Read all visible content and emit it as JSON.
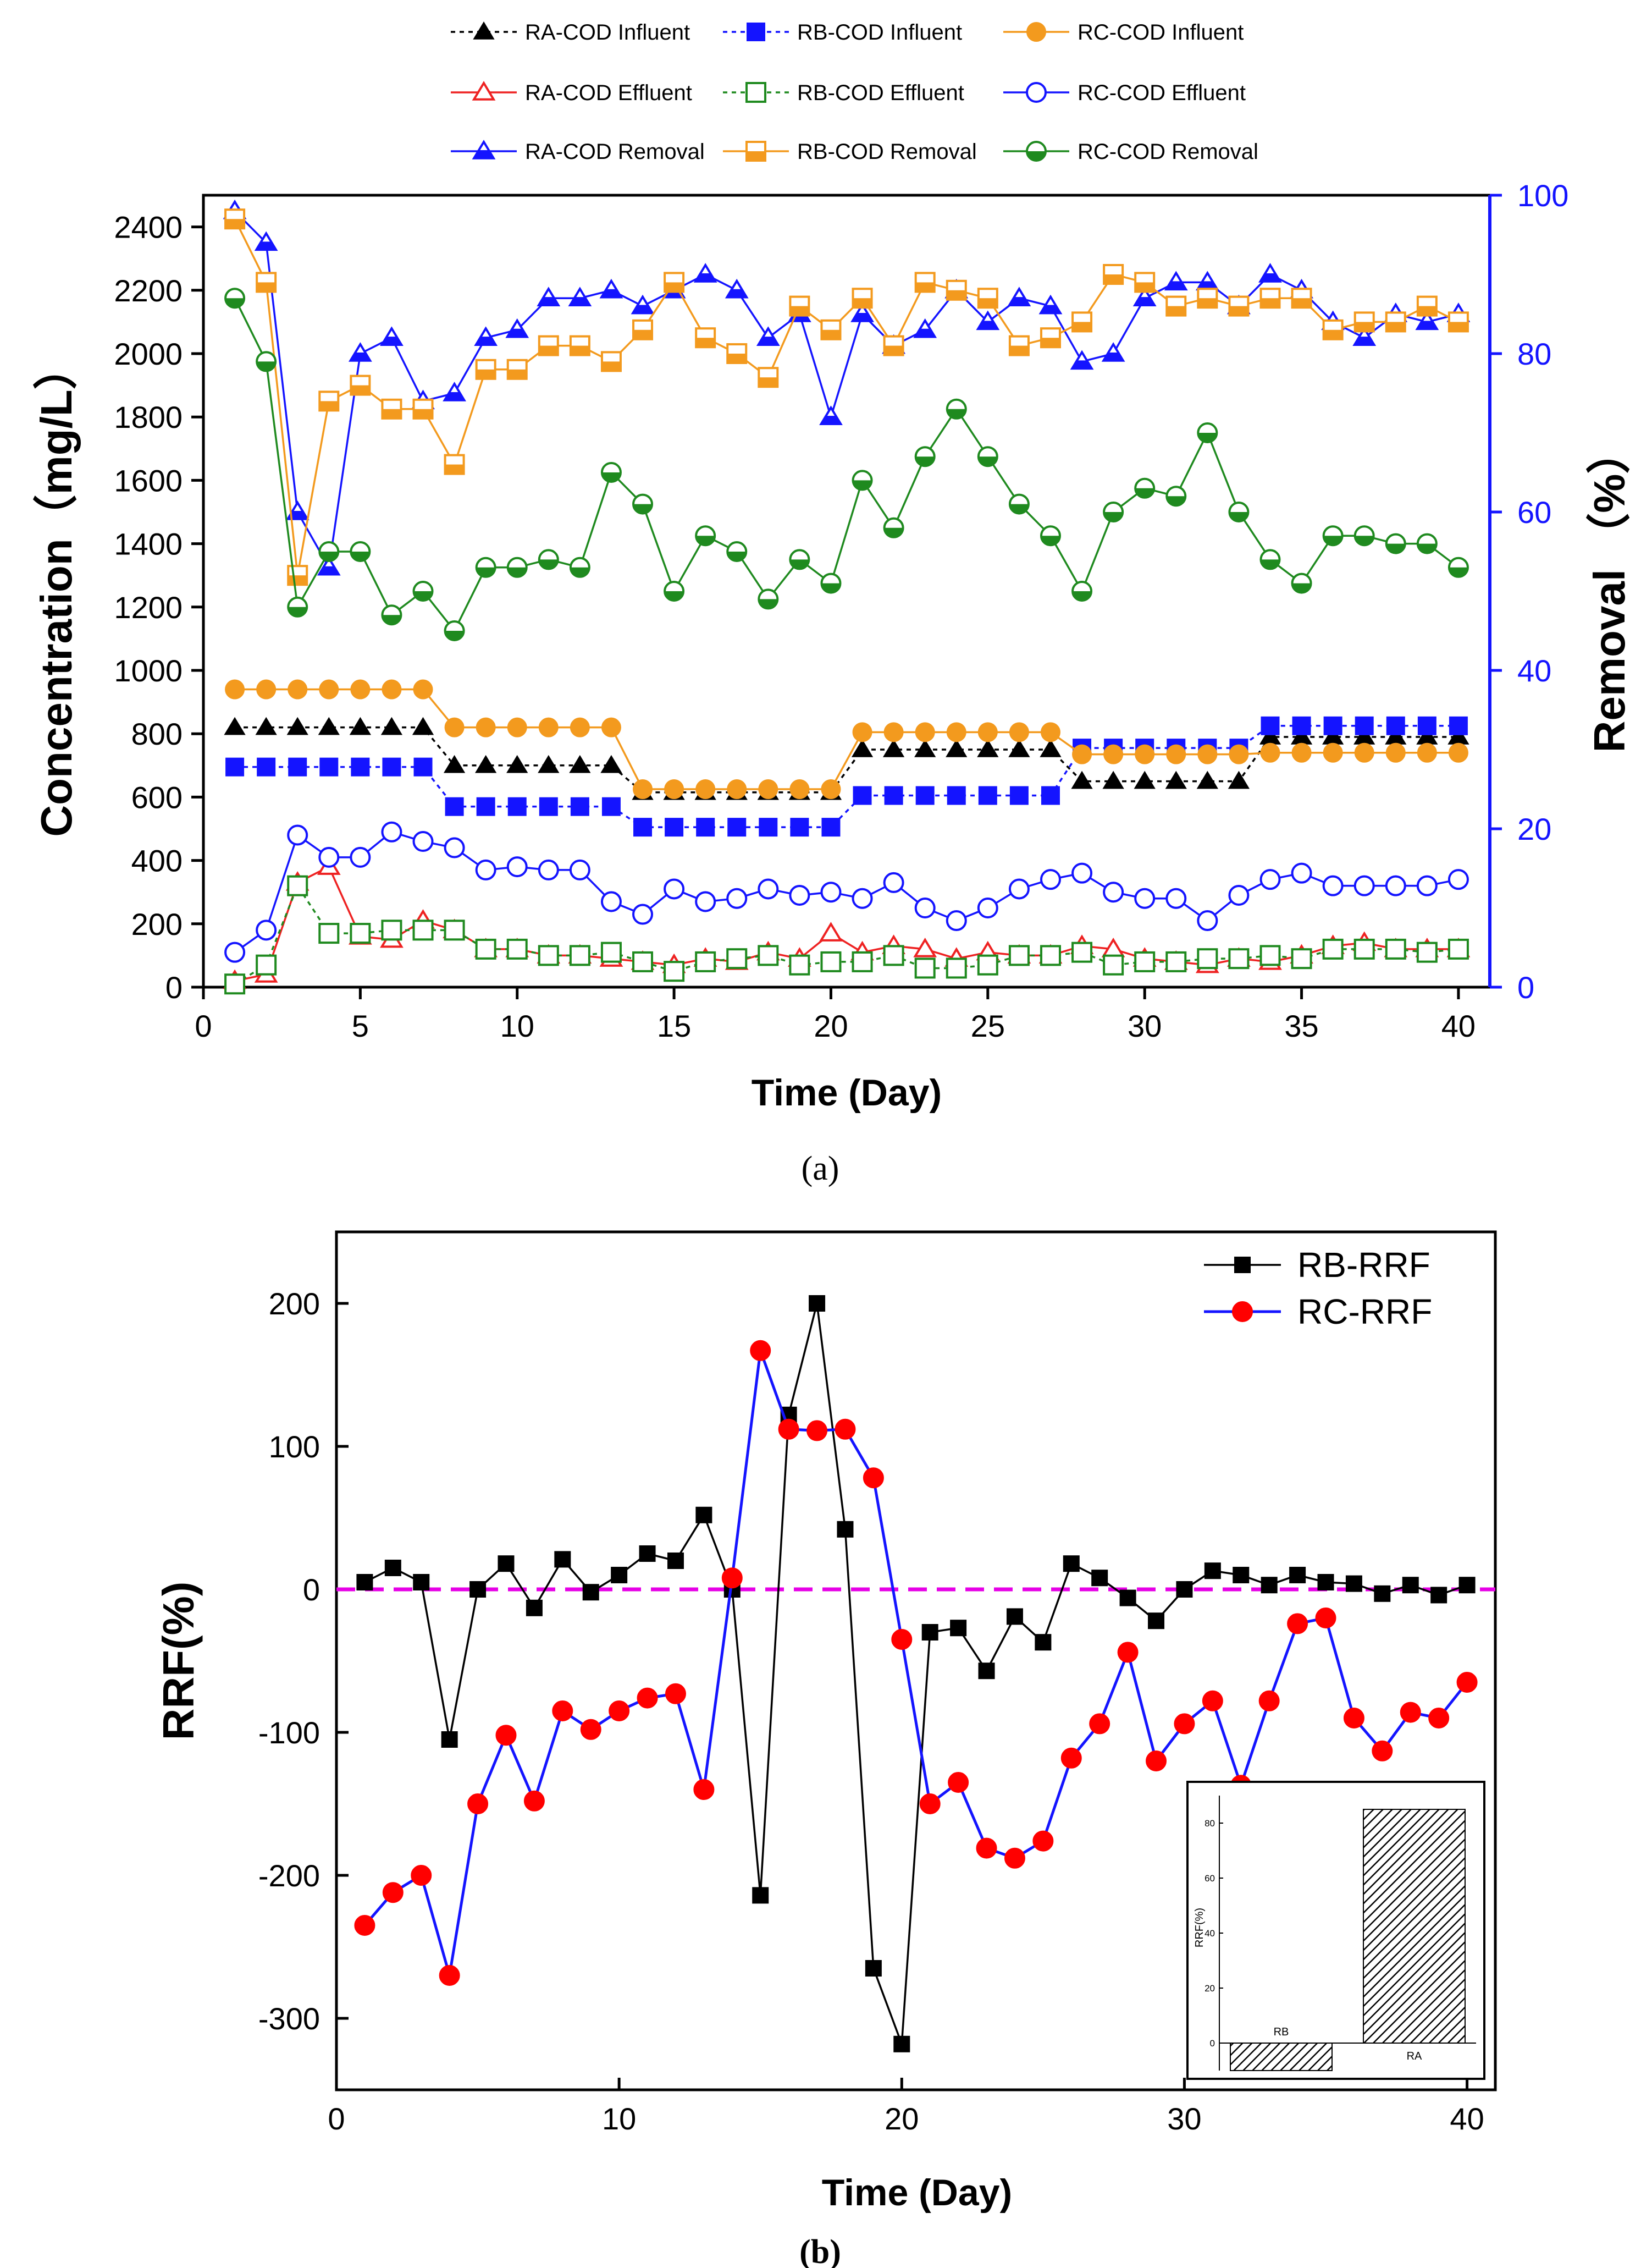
{
  "chart_data": [
    {
      "id": "panel-a",
      "type": "line",
      "panel_label": "(a)",
      "title": "",
      "xlabel": "Time (Day)",
      "ylabel": "Concentration（mg/L）",
      "y2label": "Removal （%）",
      "xlim": [
        0,
        41
      ],
      "ylim": [
        0,
        2500
      ],
      "y2lim": [
        0,
        100
      ],
      "xticks": [
        "0",
        "5",
        "10",
        "15",
        "20",
        "25",
        "30",
        "35",
        "40"
      ],
      "yticks": [
        "0",
        "200",
        "400",
        "600",
        "800",
        "1000",
        "1200",
        "1400",
        "1600",
        "1800",
        "2000",
        "2200",
        "2400"
      ],
      "y2ticks": [
        "0",
        "20",
        "40",
        "60",
        "80",
        "100"
      ],
      "x": [
        1,
        2,
        3,
        4,
        5,
        6,
        7,
        8,
        9,
        10,
        11,
        12,
        13,
        14,
        15,
        16,
        17,
        18,
        19,
        20,
        21,
        22,
        23,
        24,
        25,
        26,
        27,
        28,
        29,
        30,
        31,
        32,
        33,
        34,
        35,
        36,
        37,
        38,
        39,
        40
      ],
      "series": [
        {
          "name": "RA-COD Influent",
          "axis": "left",
          "marker": "triangle-filled",
          "color": "#000000",
          "dashed": true,
          "values": [
            820,
            820,
            820,
            820,
            820,
            820,
            820,
            700,
            700,
            700,
            700,
            700,
            700,
            615,
            615,
            615,
            615,
            615,
            615,
            615,
            750,
            750,
            750,
            750,
            750,
            750,
            750,
            650,
            650,
            650,
            650,
            650,
            650,
            790,
            790,
            790,
            790,
            790,
            790,
            790
          ]
        },
        {
          "name": "RB-COD Influent",
          "axis": "left",
          "marker": "square-filled",
          "color": "#1414ff",
          "dashed": true,
          "values": [
            695,
            695,
            695,
            695,
            695,
            695,
            695,
            570,
            570,
            570,
            570,
            570,
            570,
            505,
            505,
            505,
            505,
            505,
            505,
            505,
            605,
            605,
            605,
            605,
            605,
            605,
            605,
            755,
            755,
            755,
            755,
            755,
            755,
            825,
            825,
            825,
            825,
            825,
            825,
            825
          ]
        },
        {
          "name": "RC-COD Influent",
          "axis": "left",
          "marker": "circle-filled",
          "color": "#f39a1e",
          "dashed": false,
          "values": [
            940,
            940,
            940,
            940,
            940,
            940,
            940,
            820,
            820,
            820,
            820,
            820,
            820,
            625,
            625,
            625,
            625,
            625,
            625,
            625,
            805,
            805,
            805,
            805,
            805,
            805,
            805,
            735,
            735,
            735,
            735,
            735,
            735,
            740,
            740,
            740,
            740,
            740,
            740,
            740
          ]
        },
        {
          "name": "RA-COD Effluent",
          "axis": "left",
          "marker": "triangle-open",
          "color": "#ee2222",
          "dashed": false,
          "values": [
            20,
            40,
            330,
            380,
            160,
            150,
            210,
            180,
            120,
            120,
            100,
            100,
            90,
            80,
            70,
            90,
            80,
            110,
            90,
            170,
            110,
            130,
            120,
            90,
            110,
            100,
            100,
            130,
            120,
            90,
            80,
            70,
            90,
            80,
            100,
            130,
            140,
            120,
            120,
            120
          ]
        },
        {
          "name": "RB-COD Effluent",
          "axis": "left",
          "marker": "square-open",
          "color": "#1f8a1f",
          "dashed": true,
          "values": [
            10,
            70,
            320,
            170,
            170,
            180,
            180,
            180,
            120,
            120,
            100,
            100,
            110,
            80,
            50,
            80,
            90,
            100,
            70,
            80,
            80,
            100,
            60,
            60,
            70,
            100,
            100,
            110,
            70,
            80,
            80,
            90,
            90,
            100,
            90,
            120,
            120,
            120,
            110,
            120
          ]
        },
        {
          "name": "RC-COD Effluent",
          "axis": "left",
          "marker": "circle-open",
          "color": "#1414ff",
          "dashed": false,
          "values": [
            110,
            180,
            480,
            410,
            410,
            490,
            460,
            440,
            370,
            380,
            370,
            370,
            270,
            230,
            310,
            270,
            280,
            310,
            290,
            300,
            280,
            330,
            250,
            210,
            250,
            310,
            340,
            360,
            300,
            280,
            280,
            210,
            290,
            340,
            360,
            320,
            320,
            320,
            320,
            340
          ]
        },
        {
          "name": "RA-COD Removal",
          "axis": "right",
          "marker": "triangle-half",
          "color": "#1414ff",
          "dashed": false,
          "values": [
            98,
            94,
            60,
            53,
            80,
            82,
            74,
            75,
            82,
            83,
            87,
            87,
            88,
            86,
            88,
            90,
            88,
            82,
            85,
            72,
            85,
            81,
            83,
            88,
            84,
            87,
            86,
            79,
            80,
            87,
            89,
            89,
            86,
            90,
            88,
            84,
            82,
            85,
            84,
            85
          ]
        },
        {
          "name": "RB-COD Removal",
          "axis": "right",
          "marker": "square-half",
          "color": "#f39a1e",
          "dashed": false,
          "values": [
            97,
            89,
            52,
            74,
            76,
            73,
            73,
            66,
            78,
            78,
            81,
            81,
            79,
            83,
            89,
            82,
            80,
            77,
            86,
            83,
            87,
            81,
            89,
            88,
            87,
            81,
            82,
            84,
            90,
            89,
            86,
            87,
            86,
            87,
            87,
            83,
            84,
            84,
            86,
            84
          ]
        },
        {
          "name": "RC-COD Removal",
          "axis": "right",
          "marker": "circle-half",
          "color": "#1f8a1f",
          "dashed": false,
          "values": [
            87,
            79,
            48,
            55,
            55,
            47,
            50,
            45,
            53,
            53,
            54,
            53,
            65,
            61,
            50,
            57,
            55,
            49,
            54,
            51,
            64,
            58,
            67,
            73,
            67,
            61,
            57,
            50,
            60,
            63,
            62,
            70,
            60,
            54,
            51,
            57,
            57,
            56,
            56,
            53
          ]
        }
      ]
    },
    {
      "id": "panel-b",
      "type": "line",
      "panel_label": "(b)",
      "title": "",
      "xlabel": "Time (Day)",
      "ylabel": "RRF(%)",
      "xlim": [
        0,
        41
      ],
      "ylim": [
        -350,
        250
      ],
      "xticks": [
        "0",
        "10",
        "20",
        "30",
        "40"
      ],
      "yticks": [
        "-300",
        "-200",
        "-100",
        "0",
        "100",
        "200"
      ],
      "x": [
        1,
        2,
        3,
        4,
        5,
        6,
        7,
        8,
        9,
        10,
        11,
        12,
        13,
        14,
        15,
        16,
        17,
        18,
        19,
        20,
        21,
        22,
        23,
        24,
        25,
        26,
        27,
        28,
        29,
        30,
        31,
        32,
        33,
        34,
        35,
        36,
        37,
        38,
        39,
        40
      ],
      "reference_line": {
        "y": 0,
        "color": "#e600e6"
      },
      "series": [
        {
          "name": "RB-RRF",
          "marker": "square-filled",
          "color": "#000000",
          "values": [
            5,
            15,
            5,
            -105,
            0,
            18,
            -13,
            21,
            -2,
            10,
            25,
            20,
            52,
            0,
            -214,
            122,
            200,
            42,
            -265,
            -318,
            -30,
            -27,
            -57,
            -19,
            -37,
            18,
            8,
            -6,
            -22,
            0,
            13,
            10,
            3,
            10,
            5,
            4,
            -3,
            3,
            -4,
            3
          ]
        },
        {
          "name": "RC-RRF",
          "marker": "circle-filled",
          "color": "#1414ff",
          "marker_color": "#ff0000",
          "values": [
            -235,
            -212,
            -200,
            -270,
            -150,
            -102,
            -148,
            -85,
            -98,
            -85,
            -76,
            -73,
            -140,
            8,
            167,
            112,
            111,
            112,
            78,
            -35,
            -150,
            -135,
            -181,
            -188,
            -176,
            -118,
            -94,
            -44,
            -120,
            -94,
            -78,
            -137,
            -78,
            -24,
            -20,
            -90,
            -113,
            -86,
            -90,
            -65
          ]
        }
      ],
      "inset": {
        "type": "bar",
        "ylabel": "RRF(%)",
        "ylim": [
          -10,
          90
        ],
        "yticks": [
          "0",
          "20",
          "40",
          "60",
          "80"
        ],
        "categories": [
          "RB",
          "RA"
        ],
        "values": [
          -10,
          85
        ]
      }
    }
  ]
}
